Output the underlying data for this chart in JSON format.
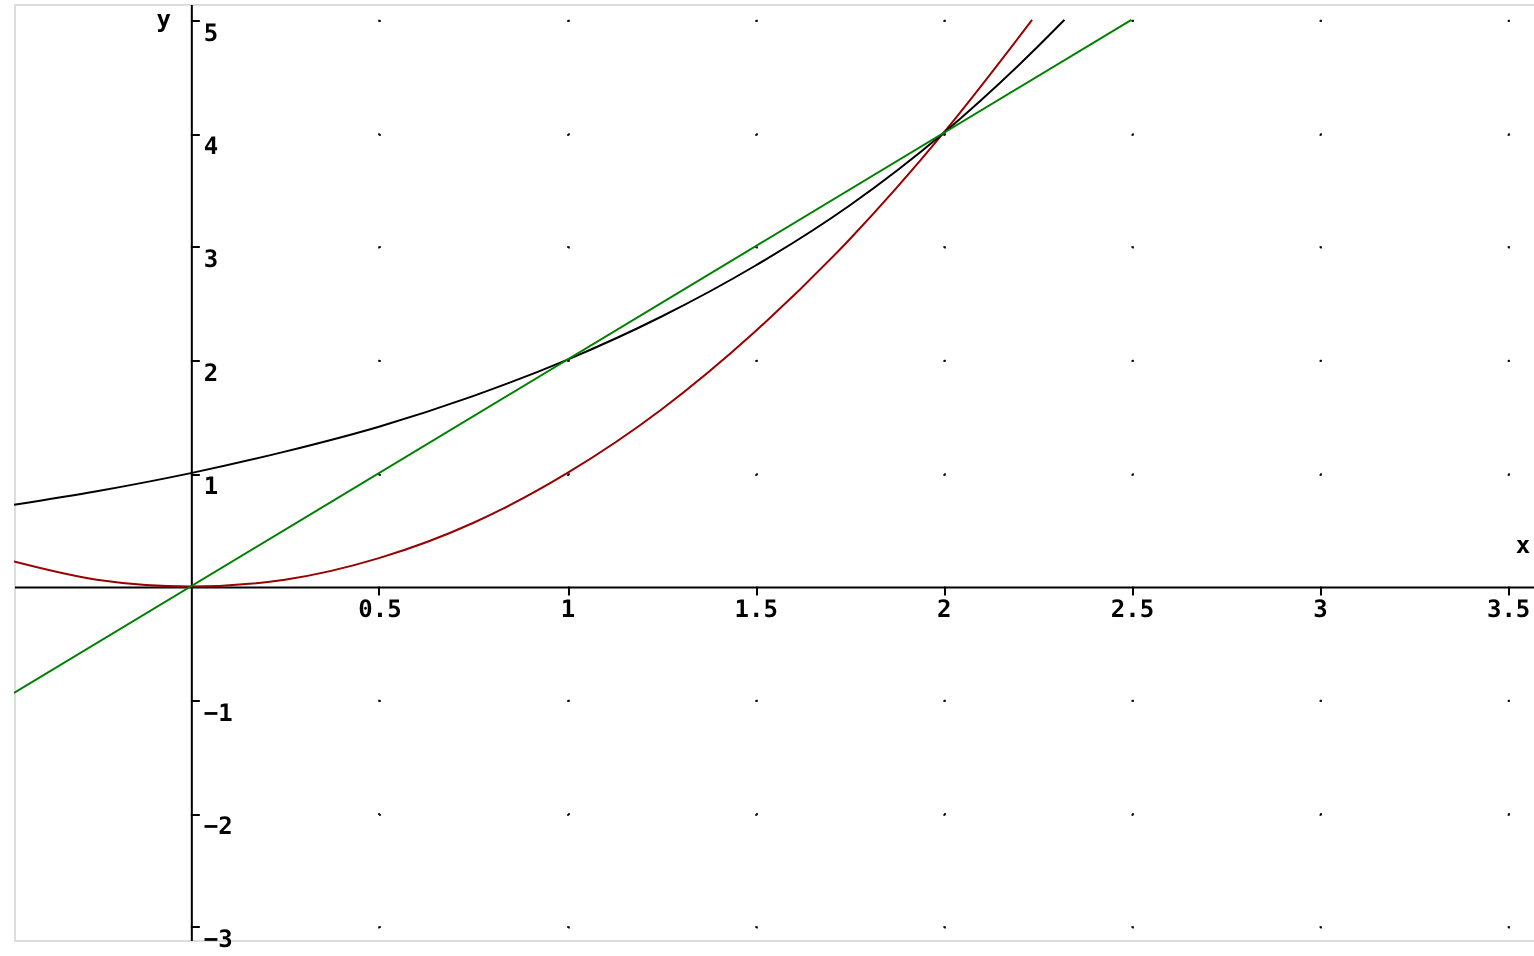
{
  "chart_data": {
    "type": "line",
    "xlabel": "x",
    "ylabel": "y",
    "xlim": [
      -0.47,
      3.57
    ],
    "ylim": [
      -3.12,
      5.14
    ],
    "xticks": [
      0.5,
      1,
      1.5,
      2,
      2.5,
      3,
      3.5
    ],
    "yticks": [
      -3,
      -2,
      -1,
      1,
      2,
      3,
      4,
      5
    ],
    "grid": true,
    "marker": "none",
    "line_style": "solid",
    "series": [
      {
        "color": "#990000",
        "x": [
          -0.47,
          -0.25,
          0,
          0.25,
          0.5,
          0.75,
          1,
          1.25,
          1.5,
          1.75,
          2,
          2.236
        ],
        "values": [
          0.22,
          0.06,
          0,
          0.06,
          0.25,
          0.56,
          1,
          1.56,
          2.25,
          3.06,
          4,
          5
        ]
      },
      {
        "color": "#000000",
        "x": [
          -0.47,
          -0.25,
          0,
          0.25,
          0.5,
          0.75,
          1,
          1.25,
          1.5,
          1.75,
          2,
          2.25,
          2.322
        ],
        "values": [
          0.72,
          0.84,
          1,
          1.19,
          1.41,
          1.68,
          2,
          2.38,
          2.83,
          3.36,
          4,
          4.76,
          5
        ]
      },
      {
        "color": "#008000",
        "x": [
          -0.47,
          2.5
        ],
        "values": [
          -0.94,
          5
        ]
      }
    ]
  }
}
